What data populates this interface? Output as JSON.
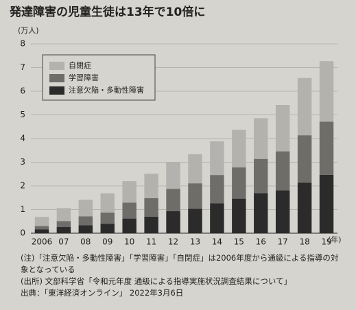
{
  "chart_data": {
    "type": "stacked_bar",
    "title": "発達障害の児童生徒は13年で10倍に",
    "y_unit": "(万人)",
    "x_unit": "(年)",
    "categories": [
      "2006",
      "07",
      "08",
      "09",
      "10",
      "11",
      "12",
      "13",
      "14",
      "15",
      "16",
      "17",
      "18",
      "19"
    ],
    "series": [
      {
        "name": "自閉症",
        "color": "#b3b2ae",
        "values": [
          0.39,
          0.55,
          0.7,
          0.81,
          0.91,
          1.03,
          1.13,
          1.23,
          1.42,
          1.59,
          1.72,
          1.96,
          2.42,
          2.56
        ]
      },
      {
        "name": "学習障害",
        "color": "#6e6d6a",
        "values": [
          0.14,
          0.25,
          0.37,
          0.47,
          0.67,
          0.78,
          0.94,
          1.08,
          1.2,
          1.32,
          1.45,
          1.65,
          2.01,
          2.24
        ]
      },
      {
        "name": "注意欠陥・多動性障害",
        "color": "#2b2b2b",
        "values": [
          0.16,
          0.26,
          0.34,
          0.4,
          0.62,
          0.7,
          0.93,
          1.03,
          1.26,
          1.46,
          1.69,
          1.81,
          2.13,
          2.47
        ]
      }
    ],
    "ylim": [
      0,
      8
    ],
    "yticks": [
      0,
      1,
      2,
      3,
      4,
      5,
      6,
      7,
      8
    ],
    "grid": true,
    "notes": [
      "(注)「注意欠陥・多動性障害」「学習障害」「自閉症」は2006年度から通級による指導の対象となっている",
      "(出所) 文部科学省「令和元年度 通級による指導実施状況調査結果について」",
      "出典：「東洋経済オンライン」 2022年3月6日"
    ]
  }
}
